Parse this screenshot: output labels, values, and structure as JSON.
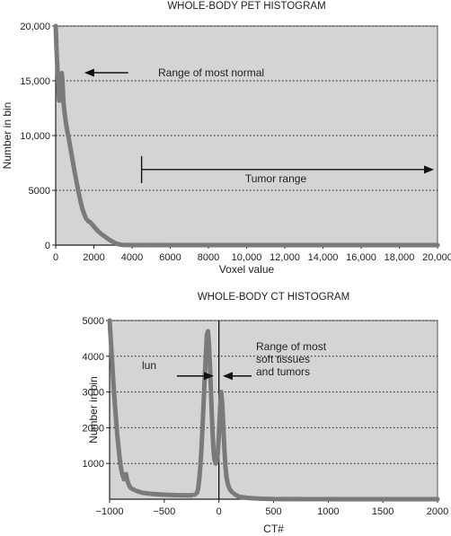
{
  "chart_data": [
    {
      "type": "scatter",
      "title": "WHOLE-BODY PET HISTOGRAM",
      "xlabel": "Voxel value",
      "ylabel": "Number in bin",
      "xlim": [
        0,
        20000
      ],
      "ylim": [
        0,
        20000
      ],
      "x_ticks": [
        0,
        2000,
        4000,
        6000,
        8000,
        10000,
        12000,
        14000,
        16000,
        18000,
        20000
      ],
      "x_tick_labels": [
        "0",
        "2000",
        "4000",
        "6000",
        "8000",
        "10,000",
        "12,000",
        "14,000",
        "16,000",
        "18,000",
        "20,000"
      ],
      "y_ticks": [
        0,
        5000,
        10000,
        15000,
        20000
      ],
      "y_tick_labels": [
        "0",
        "5000",
        "10,000",
        "15,000",
        "20,000"
      ],
      "grid": "horizontal dotted",
      "background": "#d4d4d4",
      "marker_color": "#7a7a7a",
      "annotations": [
        {
          "text": "Range of most normal",
          "arrow": "left",
          "arrow_from": 1500,
          "arrow_to": 3800,
          "y": 15000
        },
        {
          "text": "Tumor range",
          "arrow": "right",
          "arrow_from": 4500,
          "arrow_to": 20000,
          "y": 7800
        }
      ],
      "series": [
        {
          "x": [
            0,
            20,
            40,
            60,
            80,
            100,
            120,
            140,
            160,
            180,
            200,
            220,
            240,
            260,
            280,
            300,
            320,
            340,
            360,
            380,
            400,
            450,
            500,
            550,
            600,
            700,
            800,
            900,
            1000,
            1100,
            1200,
            1300,
            1400,
            1500,
            1600,
            1700,
            1800,
            2000,
            2200,
            2400,
            2600,
            2800,
            3000,
            3200,
            3400,
            3600,
            4000,
            5000,
            6000,
            8000,
            10000,
            12000,
            14000,
            16000,
            18000,
            20000
          ],
          "y": [
            20000,
            19000,
            18000,
            17200,
            16500,
            15800,
            15000,
            14200,
            13600,
            13200,
            13200,
            13600,
            14200,
            14800,
            15300,
            15600,
            15700,
            15400,
            14800,
            14000,
            13200,
            12300,
            11600,
            11000,
            10500,
            9600,
            8600,
            7600,
            6600,
            5700,
            4800,
            4000,
            3300,
            2800,
            2400,
            2200,
            2100,
            1700,
            1300,
            1000,
            750,
            500,
            300,
            120,
            40,
            15,
            0,
            0,
            0,
            0,
            0,
            0,
            0,
            0,
            0,
            0
          ]
        }
      ]
    },
    {
      "type": "scatter",
      "title": "WHOLE-BODY CT HISTOGRAM",
      "xlabel": "CT#",
      "ylabel": "Number in bin",
      "xlim": [
        -1000,
        2000
      ],
      "ylim": [
        0,
        5000
      ],
      "x_ticks": [
        -1000,
        -500,
        0,
        500,
        1000,
        1500,
        2000
      ],
      "x_tick_labels": [
        "−1000",
        "−500",
        "0",
        "500",
        "1000",
        "1500",
        "2000"
      ],
      "y_ticks": [
        1000,
        2000,
        3000,
        4000,
        5000
      ],
      "y_tick_labels": [
        "1000",
        "2000",
        "3000",
        "4000",
        "5000"
      ],
      "grid": "horizontal dotted",
      "background": "#d4d4d4",
      "marker_color": "#7a7a7a",
      "vline_x": 0,
      "annotations": [
        {
          "text": "lun",
          "x": -950,
          "y": 3700
        },
        {
          "text": "Range of most soft tissues and tumors",
          "lines": [
            "Range of most",
            "soft tissues",
            "and tumors"
          ],
          "arrows": [
            {
              "from": -230,
              "to": -30,
              "y": 3750
            },
            {
              "from": 230,
              "to": 30,
              "y": 3750
            }
          ]
        }
      ],
      "series": [
        {
          "x": [
            -1000,
            -990,
            -980,
            -970,
            -960,
            -950,
            -940,
            -930,
            -920,
            -910,
            -900,
            -890,
            -880,
            -870,
            -860,
            -850,
            -840,
            -830,
            -820,
            -810,
            -800,
            -780,
            -760,
            -740,
            -720,
            -700,
            -650,
            -600,
            -550,
            -500,
            -450,
            -400,
            -350,
            -300,
            -250,
            -220,
            -200,
            -190,
            -180,
            -170,
            -160,
            -150,
            -140,
            -130,
            -120,
            -110,
            -100,
            -90,
            -80,
            -70,
            -60,
            -50,
            -40,
            -30,
            -20,
            -10,
            0,
            10,
            20,
            30,
            40,
            50,
            60,
            70,
            80,
            90,
            100,
            120,
            140,
            160,
            180,
            200,
            250,
            300,
            350,
            400,
            450,
            500,
            600,
            800,
            1000,
            1200,
            1400,
            1600,
            1800,
            2000
          ],
          "y": [
            5000,
            4500,
            4000,
            3500,
            3000,
            2600,
            2200,
            1800,
            1500,
            1200,
            950,
            780,
            650,
            560,
            600,
            700,
            550,
            450,
            380,
            330,
            300,
            270,
            240,
            220,
            200,
            180,
            160,
            145,
            135,
            125,
            120,
            115,
            110,
            108,
            110,
            130,
            180,
            300,
            550,
            900,
            1400,
            2000,
            2700,
            3400,
            4000,
            4600,
            4700,
            4300,
            3600,
            2800,
            2000,
            1400,
            1100,
            1000,
            1050,
            1300,
            1800,
            2500,
            3000,
            2700,
            2100,
            1400,
            900,
            600,
            450,
            350,
            280,
            200,
            150,
            110,
            80,
            60,
            40,
            28,
            20,
            12,
            8,
            5,
            3,
            2,
            1,
            0,
            0,
            0,
            0,
            0
          ]
        }
      ]
    }
  ]
}
